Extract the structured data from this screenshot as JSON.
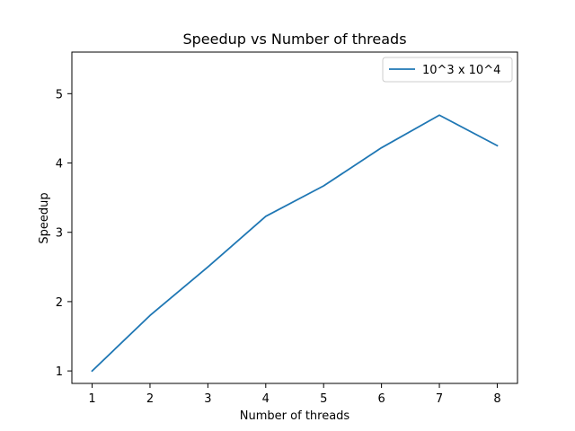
{
  "chart_data": {
    "type": "line",
    "title": "Speedup vs Number of threads",
    "xlabel": "Number of threads",
    "ylabel": "Speedup",
    "x": [
      1,
      2,
      3,
      4,
      5,
      6,
      7,
      8
    ],
    "xticks": [
      "1",
      "2",
      "3",
      "4",
      "5",
      "6",
      "7",
      "8"
    ],
    "yticks": [
      "1",
      "2",
      "3",
      "4",
      "5"
    ],
    "xlim": [
      0.65,
      8.35
    ],
    "ylim": [
      0.82,
      5.6
    ],
    "grid": false,
    "legend_position": "top-right",
    "series": [
      {
        "name": "10^3 x 10^4",
        "color": "#1f77b4",
        "values": [
          1.0,
          1.8,
          2.5,
          3.23,
          3.67,
          4.22,
          4.69,
          4.25
        ]
      }
    ]
  }
}
